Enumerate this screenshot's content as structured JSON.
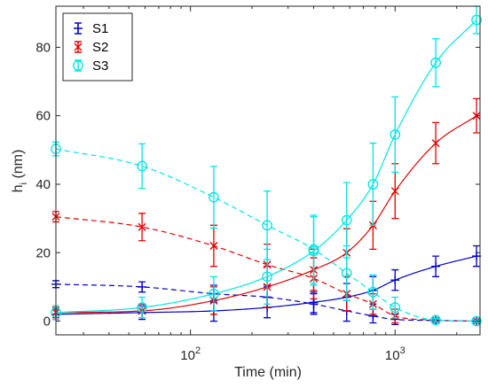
{
  "chart_data": {
    "type": "line",
    "xlabel": "Time (min)",
    "ylabel_main": "h",
    "ylabel_sub": "i",
    "ylabel_rest": " (nm)",
    "xscale": "log",
    "xlim": [
      22,
      2600
    ],
    "ylim": [
      -4,
      92
    ],
    "x_ticks": [
      {
        "value": 100,
        "base": "10",
        "exp": "2"
      },
      {
        "value": 1000,
        "base": "10",
        "exp": "3"
      }
    ],
    "y_ticks": [
      0,
      20,
      40,
      60,
      80
    ],
    "grid": false,
    "legend_position": "top-left",
    "series": [
      {
        "name": "S1",
        "color": "#0000cc",
        "marker": "plus",
        "rising": {
          "x": [
            22,
            58,
            130,
            237,
            400,
            580,
            780,
            1000,
            1580,
            2500
          ],
          "y": [
            2,
            2.5,
            3,
            4,
            5.5,
            7,
            9,
            12,
            16,
            19
          ],
          "err": [
            1.5,
            2,
            3,
            3,
            3,
            4,
            4,
            3,
            3,
            3
          ]
        },
        "falling": {
          "x": [
            22,
            58,
            130,
            237,
            400,
            580,
            780,
            1000,
            1580,
            2500
          ],
          "y": [
            10.8,
            10,
            8,
            7,
            5,
            3,
            1.5,
            0.5,
            0.2,
            0
          ],
          "err": [
            1,
            1.5,
            2.5,
            3,
            3,
            3,
            2,
            1.5,
            0.5,
            0.3
          ]
        }
      },
      {
        "name": "S2",
        "color": "#e60000",
        "marker": "cross",
        "rising": {
          "x": [
            22,
            58,
            130,
            237,
            400,
            580,
            780,
            1000,
            1580,
            2500
          ],
          "y": [
            2.5,
            3,
            6,
            10,
            15,
            20,
            28,
            38,
            52,
            60
          ],
          "err": [
            1.5,
            2,
            4,
            6,
            6,
            7,
            7,
            8,
            6,
            5
          ]
        },
        "falling": {
          "x": [
            22,
            58,
            130,
            237,
            400,
            580,
            780,
            1000,
            1580,
            2500
          ],
          "y": [
            30.5,
            27.5,
            22,
            16.5,
            12.5,
            8,
            5,
            1.5,
            0.3,
            0
          ],
          "err": [
            1.5,
            4,
            6,
            6,
            6,
            5,
            3,
            2,
            0.5,
            0.3
          ]
        }
      },
      {
        "name": "S3",
        "color": "#00e5e5",
        "marker": "circle",
        "rising": {
          "x": [
            22,
            58,
            130,
            237,
            400,
            580,
            780,
            1000,
            1580,
            2500
          ],
          "y": [
            2.5,
            4,
            8,
            13,
            20.5,
            29.5,
            40,
            54.5,
            75.5,
            88
          ],
          "err": [
            2,
            3,
            5,
            8,
            10,
            11,
            12,
            11,
            7,
            4
          ]
        },
        "falling": {
          "x": [
            22,
            58,
            130,
            237,
            400,
            580,
            780,
            1000,
            1580,
            2500
          ],
          "y": [
            50.3,
            45.3,
            36.2,
            28,
            21,
            14,
            8.5,
            4,
            0.3,
            0
          ],
          "err": [
            2,
            6.5,
            9,
            10,
            10,
            8,
            5,
            3,
            0.5,
            0.3
          ]
        }
      }
    ]
  }
}
